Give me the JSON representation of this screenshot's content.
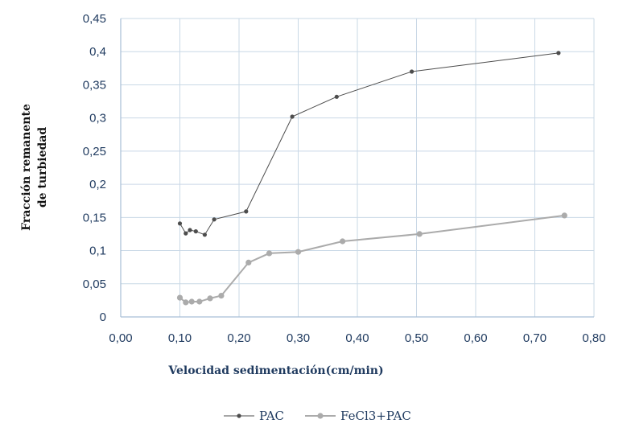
{
  "chart_data": {
    "type": "line",
    "title": "",
    "xlabel": "Velocidad sedimentación(cm/min)",
    "ylabel": [
      "Fracción remanente",
      "de turbiedad"
    ],
    "xlim": [
      0,
      0.8
    ],
    "ylim": [
      0,
      0.45
    ],
    "x_ticks": [
      "0,00",
      "0,10",
      "0,20",
      "0,30",
      "0,40",
      "0,50",
      "0,60",
      "0,70",
      "0,80"
    ],
    "y_ticks": [
      "0",
      "0,05",
      "0,1",
      "0,15",
      "0,2",
      "0,25",
      "0,3",
      "0,35",
      "0,4",
      "0,45"
    ],
    "grid": true,
    "legend_position": "bottom",
    "series": [
      {
        "name": "PAC",
        "color": "#4d4d4d",
        "points": [
          [
            0.1,
            0.141
          ],
          [
            0.11,
            0.126
          ],
          [
            0.117,
            0.131
          ],
          [
            0.127,
            0.129
          ],
          [
            0.142,
            0.124
          ],
          [
            0.158,
            0.147
          ],
          [
            0.212,
            0.159
          ],
          [
            0.29,
            0.302
          ],
          [
            0.365,
            0.332
          ],
          [
            0.492,
            0.37
          ],
          [
            0.74,
            0.398
          ]
        ]
      },
      {
        "name": "FeCl3+PAC",
        "color": "#ababab",
        "points": [
          [
            0.1,
            0.029
          ],
          [
            0.11,
            0.022
          ],
          [
            0.12,
            0.023
          ],
          [
            0.133,
            0.023
          ],
          [
            0.151,
            0.028
          ],
          [
            0.17,
            0.032
          ],
          [
            0.216,
            0.082
          ],
          [
            0.251,
            0.096
          ],
          [
            0.3,
            0.098
          ],
          [
            0.375,
            0.114
          ],
          [
            0.505,
            0.125
          ],
          [
            0.75,
            0.153
          ]
        ]
      }
    ]
  }
}
